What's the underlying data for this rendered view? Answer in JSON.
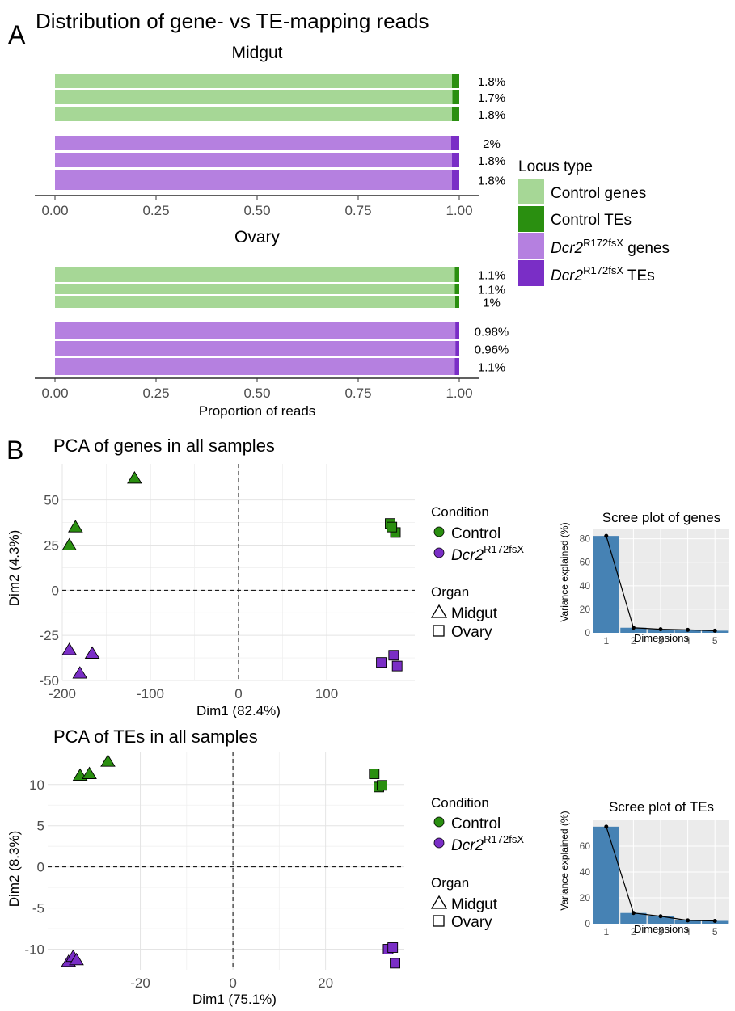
{
  "panel_a": {
    "letter": "A",
    "title": "Distribution of gene- vs TE-mapping reads",
    "xlabel": "Proportion of reads",
    "legend": {
      "title": "Locus type",
      "items": [
        {
          "name": "Control genes",
          "color": "#a6d796"
        },
        {
          "name": "Control TEs",
          "color": "#2a8f10"
        },
        {
          "name": "Dcr2",
          "sup": "R172fsX",
          "suffix": " genes",
          "color": "#b580e0"
        },
        {
          "name": "Dcr2",
          "sup": "R172fsX",
          "suffix": " TEs",
          "color": "#7a2ec6"
        }
      ]
    },
    "x_ticks": [
      "0.00",
      "0.25",
      "0.50",
      "0.75",
      "1.00"
    ]
  },
  "panel_b": {
    "letter": "B",
    "legend": {
      "condition_title": "Condition",
      "control_label": "Control",
      "dcr2_label": "Dcr2",
      "dcr2_sup": "R172fsX",
      "organ_title": "Organ",
      "midgut_label": "Midgut",
      "ovary_label": "Ovary"
    }
  },
  "chart_data": [
    {
      "type": "bar",
      "title": "Midgut",
      "orientation": "horizontal-stacked",
      "xlim": [
        0,
        1
      ],
      "series": [
        {
          "name": "Control",
          "te_fraction": [
            0.018,
            0.017,
            0.018
          ],
          "labels": [
            "1.8%",
            "1.7%",
            "1.8%"
          ]
        },
        {
          "name": "Dcr2R172fsX",
          "te_fraction": [
            0.02,
            0.018,
            0.018
          ],
          "labels": [
            "2%",
            "1.8%",
            "1.8%"
          ]
        }
      ]
    },
    {
      "type": "bar",
      "title": "Ovary",
      "orientation": "horizontal-stacked",
      "xlim": [
        0,
        1
      ],
      "series": [
        {
          "name": "Control",
          "te_fraction": [
            0.011,
            0.011,
            0.01
          ],
          "labels": [
            "1.1%",
            "1.1%",
            "1%"
          ]
        },
        {
          "name": "Dcr2R172fsX",
          "te_fraction": [
            0.0098,
            0.0096,
            0.011
          ],
          "labels": [
            "0.98%",
            "0.96%",
            "1.1%"
          ]
        }
      ]
    },
    {
      "type": "scatter",
      "title": "PCA of genes in all samples",
      "xlabel": "Dim1 (82.4%)",
      "ylabel": "Dim2 (4.3%)",
      "xlim": [
        -200,
        200
      ],
      "ylim": [
        -50,
        70
      ],
      "x_ticks": [
        -200,
        -100,
        0,
        100
      ],
      "x_tick_labels": [
        "-200",
        "-100",
        "0",
        "100"
      ],
      "y_ticks": [
        -50,
        -25,
        0,
        25,
        50
      ],
      "y_tick_labels": [
        "-50",
        "-25",
        "0",
        "25",
        "50"
      ],
      "points": [
        {
          "x": -118,
          "y": 62,
          "condition": "control",
          "organ": "midgut"
        },
        {
          "x": -185,
          "y": 35,
          "condition": "control",
          "organ": "midgut"
        },
        {
          "x": -192,
          "y": 25,
          "condition": "control",
          "organ": "midgut"
        },
        {
          "x": 172,
          "y": 37,
          "condition": "control",
          "organ": "ovary"
        },
        {
          "x": 178,
          "y": 32,
          "condition": "control",
          "organ": "ovary"
        },
        {
          "x": 174,
          "y": 35,
          "condition": "control",
          "organ": "ovary"
        },
        {
          "x": -192,
          "y": -33,
          "condition": "dcr2",
          "organ": "midgut"
        },
        {
          "x": -166,
          "y": -35,
          "condition": "dcr2",
          "organ": "midgut"
        },
        {
          "x": -180,
          "y": -46,
          "condition": "dcr2",
          "organ": "midgut"
        },
        {
          "x": 162,
          "y": -40,
          "condition": "dcr2",
          "organ": "ovary"
        },
        {
          "x": 176,
          "y": -36,
          "condition": "dcr2",
          "organ": "ovary"
        },
        {
          "x": 180,
          "y": -42,
          "condition": "dcr2",
          "organ": "ovary"
        }
      ]
    },
    {
      "type": "scatter",
      "title": "PCA of TEs in all samples",
      "xlabel": "Dim1 (75.1%)",
      "ylabel": "Dim2 (8.3%)",
      "xlim": [
        -40,
        37
      ],
      "ylim": [
        -12.5,
        14
      ],
      "x_ticks": [
        -20,
        0,
        20
      ],
      "x_tick_labels": [
        "-20",
        "0",
        "20"
      ],
      "y_ticks": [
        -10,
        -5,
        0,
        5,
        10
      ],
      "y_tick_labels": [
        "-10",
        "-5",
        "0",
        "5",
        "10"
      ],
      "points": [
        {
          "x": -27,
          "y": 12.8,
          "condition": "control",
          "organ": "midgut"
        },
        {
          "x": -33,
          "y": 11.1,
          "condition": "control",
          "organ": "midgut"
        },
        {
          "x": -31,
          "y": 11.3,
          "condition": "control",
          "organ": "midgut"
        },
        {
          "x": 30.5,
          "y": 11.3,
          "condition": "control",
          "organ": "ovary"
        },
        {
          "x": 31.5,
          "y": 9.7,
          "condition": "control",
          "organ": "ovary"
        },
        {
          "x": 32.2,
          "y": 9.9,
          "condition": "control",
          "organ": "ovary"
        },
        {
          "x": -35.5,
          "y": -11.5,
          "condition": "dcr2",
          "organ": "midgut"
        },
        {
          "x": -34.5,
          "y": -10.9,
          "condition": "dcr2",
          "organ": "midgut"
        },
        {
          "x": -33.8,
          "y": -11.3,
          "condition": "dcr2",
          "organ": "midgut"
        },
        {
          "x": 33.5,
          "y": -10,
          "condition": "dcr2",
          "organ": "ovary"
        },
        {
          "x": 34.5,
          "y": -9.8,
          "condition": "dcr2",
          "organ": "ovary"
        },
        {
          "x": 35,
          "y": -11.7,
          "condition": "dcr2",
          "organ": "ovary"
        }
      ]
    },
    {
      "type": "bar+line",
      "title": "Scree plot of genes",
      "xlabel": "Dimensions",
      "ylabel": "Variance explained (%)",
      "categories": [
        "1",
        "2",
        "3",
        "4",
        "5"
      ],
      "values": [
        82.4,
        4.3,
        3.0,
        2.5,
        1.8
      ],
      "ylim": [
        0,
        88
      ],
      "y_ticks": [
        0,
        20,
        40,
        60,
        80
      ],
      "y_tick_labels": [
        "0",
        "20",
        "40",
        "60",
        "80"
      ]
    },
    {
      "type": "bar+line",
      "title": "Scree plot of TEs",
      "xlabel": "Dimensions",
      "ylabel": "Variance explained (%)",
      "categories": [
        "1",
        "2",
        "3",
        "4",
        "5"
      ],
      "values": [
        75.1,
        8.3,
        5.8,
        2.6,
        2.2
      ],
      "ylim": [
        0,
        80
      ],
      "y_ticks": [
        0,
        20,
        40,
        60
      ],
      "y_tick_labels": [
        "0",
        "20",
        "40",
        "60"
      ]
    }
  ]
}
